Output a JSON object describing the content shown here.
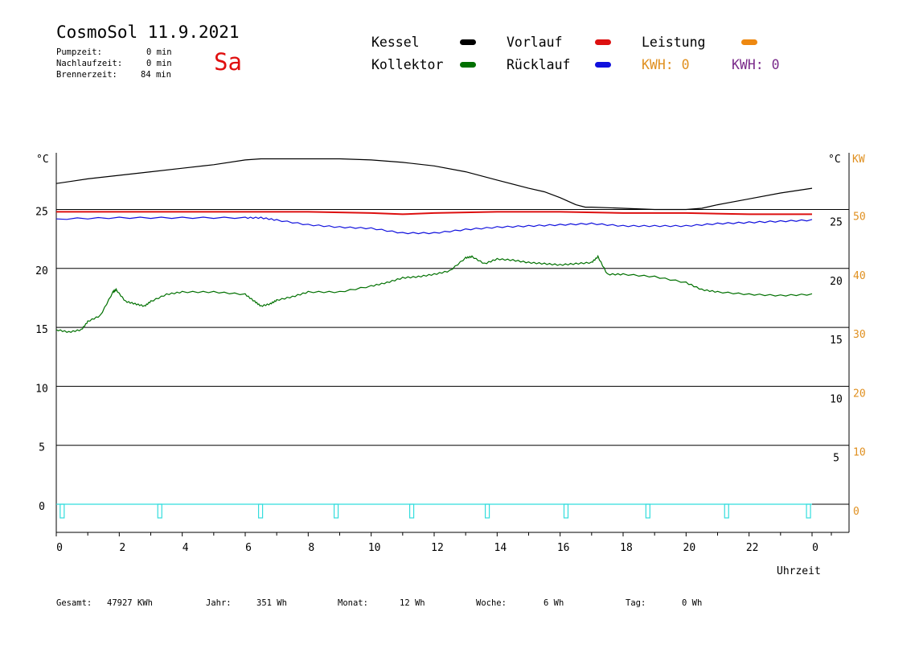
{
  "header": {
    "title": "CosmoSol 11.9.2021",
    "day": "Sa",
    "day_color": "#e01010",
    "pumpzeit_label": "Pumpzeit:",
    "pumpzeit_value": "0 min",
    "nachlauf_label": "Nachlaufzeit:",
    "nachlauf_value": "0 min",
    "brenner_label": "Brennerzeit:",
    "brenner_value": "84 min"
  },
  "legend": {
    "kessel": "Kessel",
    "kollektor": "Kollektor",
    "vorlauf": "Vorlauf",
    "ruecklauf": "Rücklauf",
    "leistung": "Leistung",
    "kwh_orange": "KWH: 0",
    "kwh_purple": "KWH: 0"
  },
  "colors": {
    "kessel": "#000000",
    "kollektor": "#007000",
    "vorlauf": "#dd1010",
    "ruecklauf": "#1010dd",
    "leistung": "#ee8810",
    "kwh_purple": "#7a2a8a",
    "pump": "#33dddd",
    "kw_axis": "#e09020"
  },
  "footer": {
    "gesamt_label": "Gesamt:",
    "gesamt_value": "47927 KWh",
    "jahr_label": "Jahr:",
    "jahr_value": "351 Wh",
    "monat_label": "Monat:",
    "monat_value": "12 Wh",
    "woche_label": "Woche:",
    "woche_value": "6 Wh",
    "tag_label": "Tag:",
    "tag_value": "0 Wh"
  },
  "chart_data": {
    "type": "line",
    "x_unit_label": "Uhrzeit",
    "left_unit": "°C",
    "right_unit_temp": "°C",
    "right_unit_power": "KW",
    "x_ticks": [
      "0",
      "2",
      "4",
      "6",
      "8",
      "10",
      "12",
      "14",
      "16",
      "18",
      "20",
      "22",
      "0"
    ],
    "y_left_ticks": [
      0,
      5,
      10,
      15,
      20,
      25
    ],
    "y_right_temp_ticks": [
      5,
      10,
      15,
      20,
      25
    ],
    "y_right_kw_ticks": [
      0,
      10,
      20,
      30,
      40,
      50
    ],
    "xlim": [
      0,
      24
    ],
    "ylim": [
      -1.7,
      28.5
    ],
    "series": [
      {
        "name": "Kessel",
        "key": "kessel",
        "x": [
          0,
          0.5,
          1,
          2,
          3,
          4,
          5,
          6,
          6.5,
          7,
          8,
          9,
          10,
          11,
          12,
          13,
          14,
          15,
          15.5,
          16,
          16.5,
          16.8,
          17,
          18,
          19,
          20,
          20.5,
          21,
          22,
          23,
          24
        ],
        "y": [
          27.2,
          27.4,
          27.6,
          27.9,
          28.2,
          28.5,
          28.8,
          29.2,
          29.3,
          29.3,
          29.3,
          29.3,
          29.2,
          29.0,
          28.7,
          28.2,
          27.5,
          26.8,
          26.5,
          26.0,
          25.4,
          25.2,
          25.2,
          25.1,
          25.0,
          25.0,
          25.1,
          25.4,
          25.9,
          26.4,
          26.8
        ]
      },
      {
        "name": "Vorlauf",
        "key": "vorlauf",
        "x": [
          0,
          2,
          4,
          6,
          8,
          10,
          11,
          12,
          14,
          16,
          18,
          20,
          22,
          24
        ],
        "y": [
          24.8,
          24.8,
          24.8,
          24.8,
          24.8,
          24.7,
          24.6,
          24.7,
          24.8,
          24.8,
          24.7,
          24.7,
          24.6,
          24.6
        ]
      },
      {
        "name": "Rücklauf",
        "key": "ruecklauf",
        "x": [
          0,
          2,
          4,
          6,
          6.5,
          7,
          8,
          9,
          10,
          11,
          12,
          13,
          14,
          15,
          16,
          17,
          18,
          19,
          20,
          21,
          22,
          23,
          24
        ],
        "y": [
          24.2,
          24.3,
          24.3,
          24.3,
          24.3,
          24.1,
          23.7,
          23.5,
          23.4,
          23.0,
          23.0,
          23.3,
          23.5,
          23.6,
          23.7,
          23.8,
          23.6,
          23.6,
          23.6,
          23.8,
          23.9,
          24.0,
          24.1
        ],
        "step": true
      },
      {
        "name": "Kollektor",
        "key": "kollektor",
        "x": [
          0,
          0.4,
          0.8,
          1,
          1.4,
          1.8,
          1.9,
          2.2,
          2.5,
          2.8,
          3,
          3.5,
          4,
          5,
          6,
          6.3,
          6.5,
          6.8,
          7,
          7.5,
          8,
          9,
          10,
          10.5,
          11,
          11.5,
          12,
          12.5,
          13,
          13.2,
          13.6,
          14,
          14.5,
          15,
          15.5,
          16,
          16.5,
          17,
          17.2,
          17.5,
          18,
          19,
          20,
          20.5,
          21,
          22,
          23,
          24
        ],
        "y": [
          14.8,
          14.6,
          14.8,
          15.5,
          16.0,
          18.0,
          18.2,
          17.2,
          17.0,
          16.8,
          17.2,
          17.8,
          18.0,
          18.0,
          17.8,
          17.2,
          16.8,
          17.0,
          17.3,
          17.6,
          18.0,
          18.0,
          18.5,
          18.8,
          19.2,
          19.3,
          19.5,
          19.8,
          20.9,
          21.0,
          20.4,
          20.8,
          20.7,
          20.5,
          20.4,
          20.3,
          20.4,
          20.5,
          21.0,
          19.5,
          19.5,
          19.3,
          18.8,
          18.2,
          18.0,
          17.8,
          17.7,
          17.8
        ],
        "step": true
      },
      {
        "name": "Leistung",
        "key": "leistung",
        "x": [
          0,
          24
        ],
        "y": [
          0,
          0
        ]
      }
    ],
    "pump_markers_x": [
      0.2,
      3.3,
      6.5,
      8.9,
      11.3,
      13.7,
      16.2,
      18.8,
      21.3,
      23.9
    ],
    "grid": true
  }
}
